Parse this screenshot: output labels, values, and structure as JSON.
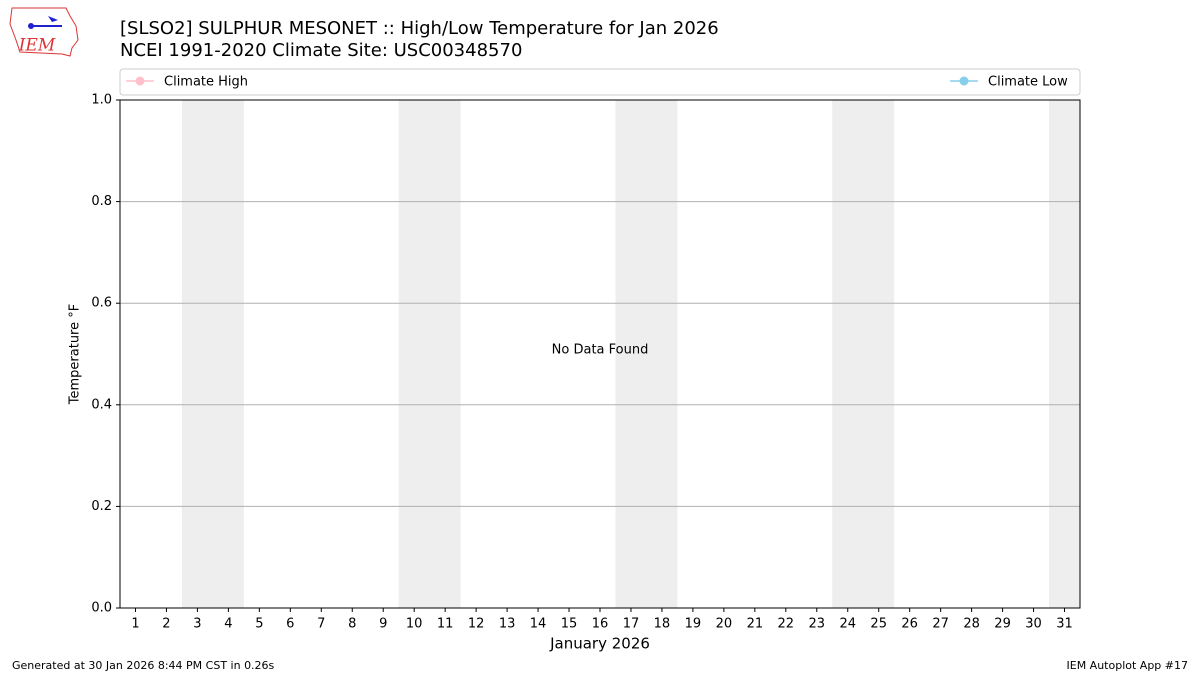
{
  "chart_data": {
    "type": "line",
    "title": "[SLSO2] SULPHUR MESONET :: High/Low Temperature for Jan 2026",
    "subtitle": "NCEI 1991-2020 Climate Site: USC00348570",
    "x_label": "January 2026",
    "y_label": "Temperature °F",
    "annotation": "No Data Found",
    "x": [],
    "series": [
      {
        "name": "Climate High",
        "color": "#ffc0cb",
        "values": []
      },
      {
        "name": "Climate Low",
        "color": "#87ceeb",
        "values": []
      }
    ],
    "xlim": [
      0.5,
      31.5
    ],
    "xticks": [
      1,
      2,
      3,
      4,
      5,
      6,
      7,
      8,
      9,
      10,
      11,
      12,
      13,
      14,
      15,
      16,
      17,
      18,
      19,
      20,
      21,
      22,
      23,
      24,
      25,
      26,
      27,
      28,
      29,
      30,
      31
    ],
    "ylim": [
      0,
      1
    ],
    "yticks": [
      {
        "value": 0,
        "label": "0.0"
      },
      {
        "value": 0.2,
        "label": "0.2"
      },
      {
        "value": 0.4,
        "label": "0.4"
      },
      {
        "value": 0.6,
        "label": "0.6"
      },
      {
        "value": 0.8,
        "label": "0.8"
      },
      {
        "value": 1,
        "label": "1.0"
      }
    ],
    "grid": true,
    "footer_left": "Generated at 30 Jan 2026 8:44 PM CST in 0.26s",
    "footer_right": "IEM Autoplot App #17",
    "logo_text": "IEM"
  }
}
